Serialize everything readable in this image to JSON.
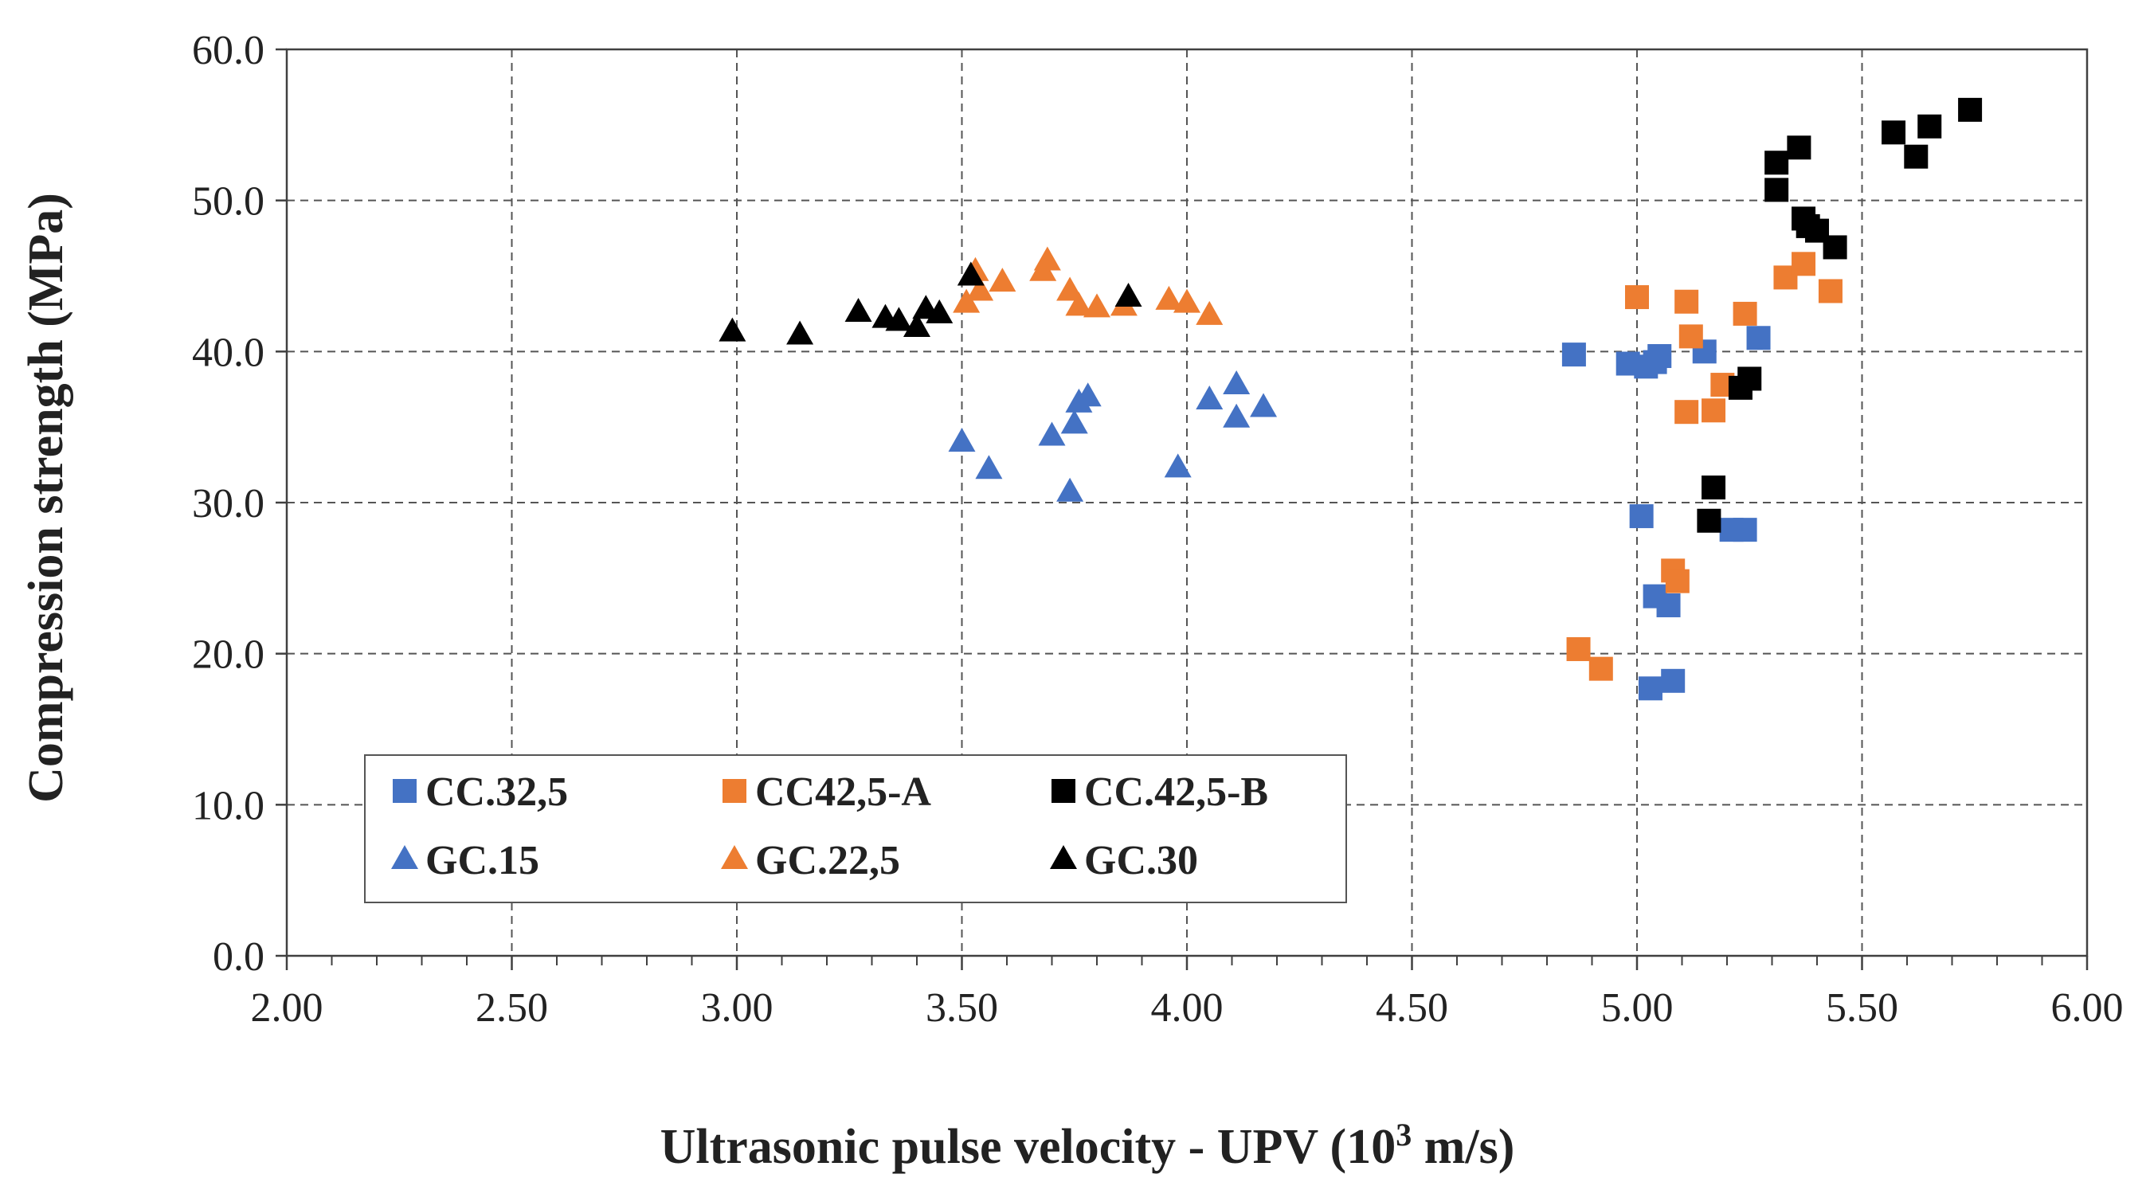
{
  "chart_data": {
    "type": "scatter",
    "title": "",
    "xlabel": "Ultrasonic pulse velocity - UPV (10",
    "xlabel_superscript": "3",
    "xlabel_suffix": " m/s)",
    "ylabel": "Compression strength (MPa)",
    "xlim": [
      2.0,
      6.0
    ],
    "ylim": [
      0.0,
      60.0
    ],
    "xticks": [
      2.0,
      2.5,
      3.0,
      3.5,
      4.0,
      4.5,
      5.0,
      5.5,
      6.0
    ],
    "xtick_labels": [
      "2.00",
      "2.50",
      "3.00",
      "3.50",
      "4.00",
      "4.50",
      "5.00",
      "5.50",
      "6.00"
    ],
    "yticks": [
      0,
      10,
      20,
      30,
      40,
      50,
      60
    ],
    "ytick_labels": [
      "0.0",
      "10.0",
      "20.0",
      "30.0",
      "40.0",
      "50.0",
      "60.0"
    ],
    "grid": true,
    "legend_position": "lower-left",
    "series": [
      {
        "name": "CC.32,5",
        "marker": "square",
        "color": "#4472C4",
        "x": [
          4.86,
          4.98,
          5.02,
          5.04,
          5.05,
          5.15,
          5.27,
          5.01,
          5.04,
          5.07,
          5.21,
          5.24,
          5.03,
          5.08
        ],
        "y": [
          39.8,
          39.2,
          39.0,
          39.3,
          39.7,
          40.0,
          40.9,
          29.1,
          23.8,
          23.2,
          28.2,
          28.2,
          17.7,
          18.2
        ]
      },
      {
        "name": "CC42,5-A",
        "marker": "square",
        "color": "#ED7D31",
        "x": [
          5.0,
          5.11,
          5.12,
          5.24,
          5.33,
          5.37,
          5.43,
          5.11,
          5.17,
          5.19,
          5.08,
          5.09,
          4.87,
          4.92
        ],
        "y": [
          43.6,
          43.3,
          41.0,
          42.5,
          44.9,
          45.8,
          44.0,
          36.0,
          36.1,
          37.8,
          25.5,
          24.8,
          20.3,
          19.0
        ]
      },
      {
        "name": "CC.42,5-B",
        "marker": "square",
        "color": "#000000",
        "x": [
          5.31,
          5.31,
          5.36,
          5.37,
          5.38,
          5.4,
          5.44,
          5.57,
          5.62,
          5.65,
          5.74,
          5.23,
          5.25,
          5.17,
          5.16
        ],
        "y": [
          52.5,
          50.7,
          53.5,
          48.8,
          48.3,
          48.0,
          46.9,
          54.5,
          52.9,
          54.9,
          56.0,
          37.6,
          38.2,
          31.0,
          28.8
        ]
      },
      {
        "name": "GC.15",
        "marker": "triangle",
        "color": "#4472C4",
        "x": [
          3.5,
          3.56,
          3.7,
          3.74,
          3.75,
          3.76,
          3.78,
          3.98,
          4.05,
          4.11,
          4.11,
          4.17
        ],
        "y": [
          34.0,
          32.2,
          34.4,
          30.7,
          35.2,
          36.6,
          37.0,
          32.3,
          36.8,
          37.8,
          35.6,
          36.3
        ]
      },
      {
        "name": "GC.22,5",
        "marker": "triangle",
        "color": "#ED7D31",
        "x": [
          3.51,
          3.53,
          3.54,
          3.59,
          3.68,
          3.69,
          3.74,
          3.76,
          3.8,
          3.86,
          3.96,
          4.0,
          4.05
        ],
        "y": [
          43.2,
          45.3,
          44.0,
          44.6,
          45.3,
          46.0,
          44.0,
          43.0,
          42.9,
          43.0,
          43.4,
          43.2,
          42.4
        ]
      },
      {
        "name": "GC.30",
        "marker": "triangle",
        "color": "#000000",
        "x": [
          2.99,
          3.14,
          3.27,
          3.33,
          3.36,
          3.4,
          3.42,
          3.45,
          3.52,
          3.87
        ],
        "y": [
          41.3,
          41.1,
          42.6,
          42.2,
          42.0,
          41.6,
          42.8,
          42.5,
          45.0,
          43.6
        ]
      }
    ]
  }
}
